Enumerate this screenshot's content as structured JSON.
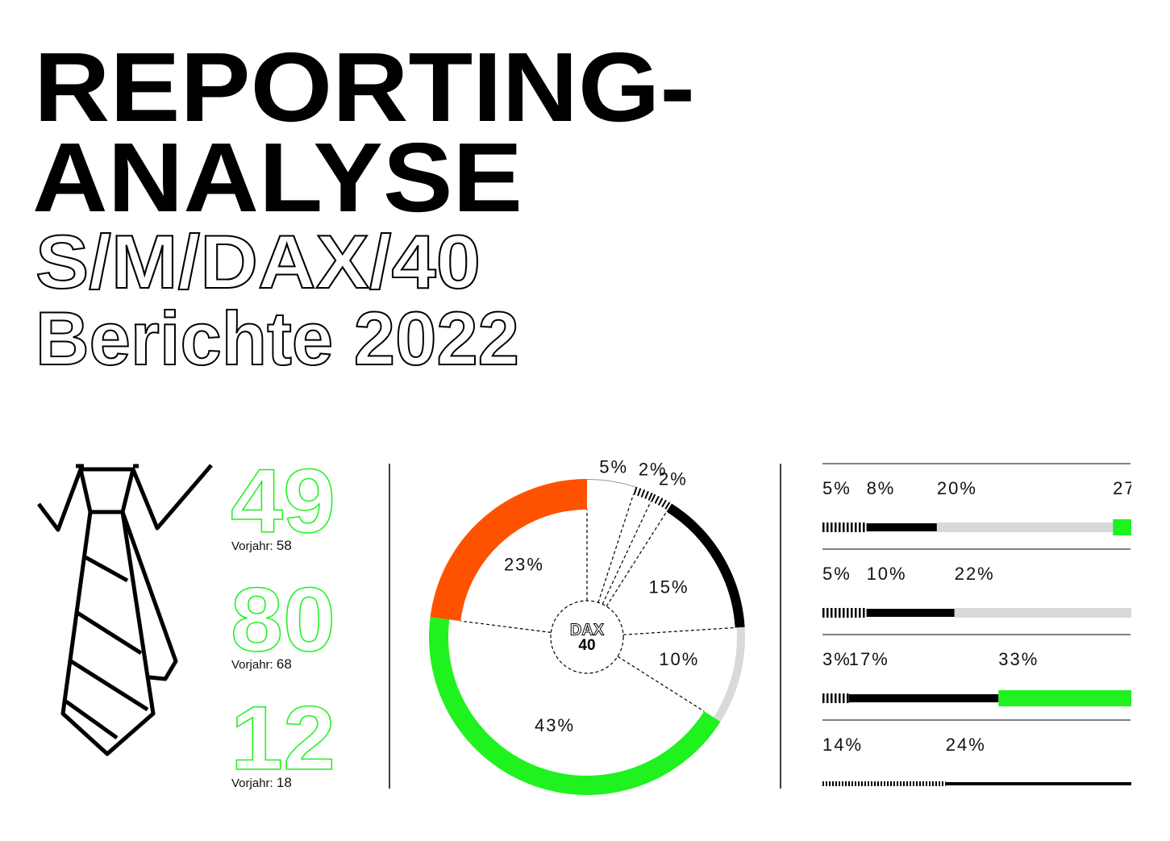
{
  "header": {
    "title_lines": [
      "REPORTING-",
      "ANALYSE"
    ],
    "subtitle_lines": [
      "S/M/DAX/40",
      "Berichte 2022"
    ]
  },
  "kpis": [
    {
      "value": 49,
      "label": "Vorjahr:",
      "previous": 58
    },
    {
      "value": 80,
      "label": "Vorjahr:",
      "previous": 68
    },
    {
      "value": 12,
      "label": "Vorjahr:",
      "previous": 18
    }
  ],
  "kpi_color": "#1ff21f",
  "chart_data": [
    {
      "type": "donut",
      "center_label": "DAX",
      "center_value": 40,
      "values": [
        5,
        2,
        2,
        15,
        10,
        43,
        23
      ],
      "value_labels": [
        "5%",
        "2%",
        "2%",
        "15%",
        "10%",
        "43%",
        "23%"
      ],
      "colors": [
        "#ffffff",
        "#000000",
        "#000000",
        "#000000",
        "#d9d9d9",
        "#1ff21f",
        "#ff5200"
      ],
      "hatched": [
        false,
        true,
        true,
        false,
        false,
        false,
        false
      ]
    },
    {
      "type": "stacked-bar",
      "xlim": [
        0,
        35
      ],
      "rows": [
        {
          "values": [
            5,
            8,
            20,
            27
          ],
          "value_labels": [
            "5%",
            "8%",
            "20%",
            "27"
          ],
          "colors": [
            "#000000",
            "#000000",
            "#d9d9d9",
            "#1ff21f"
          ],
          "hatched": [
            true,
            false,
            false,
            false
          ]
        },
        {
          "values": [
            5,
            10,
            22
          ],
          "value_labels": [
            "5%",
            "10%",
            "22%"
          ],
          "colors": [
            "#000000",
            "#000000",
            "#d9d9d9"
          ],
          "hatched": [
            true,
            false,
            false
          ]
        },
        {
          "values": [
            3,
            17,
            33
          ],
          "value_labels": [
            "3%",
            "17%",
            "33%"
          ],
          "colors": [
            "#000000",
            "#000000",
            "#1ff21f"
          ],
          "hatched": [
            true,
            false,
            false
          ]
        },
        {
          "values": [
            14,
            24
          ],
          "value_labels": [
            "14%",
            "24%"
          ],
          "colors": [
            "#000000",
            "#000000"
          ],
          "hatched": [
            true,
            false
          ]
        }
      ]
    }
  ]
}
